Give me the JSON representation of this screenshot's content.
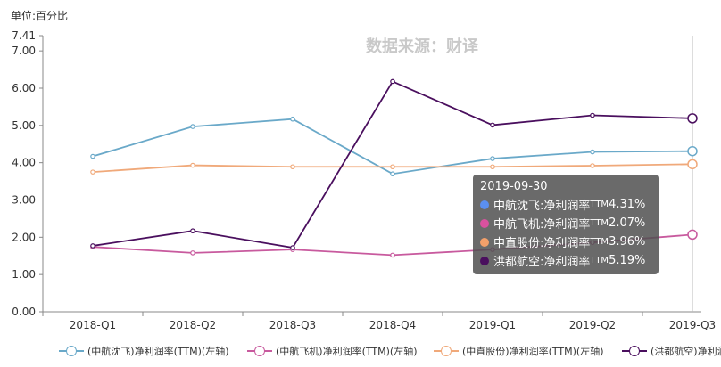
{
  "unit_label": "单位:百分比",
  "watermark": "数据来源：财译",
  "chart_data": {
    "type": "line",
    "categories": [
      "2018-Q1",
      "2018-Q2",
      "2018-Q3",
      "2018-Q4",
      "2019-Q1",
      "2019-Q2",
      "2019-Q3"
    ],
    "y_ticks": [
      "0.00",
      "1.00",
      "2.00",
      "3.00",
      "4.00",
      "5.00",
      "6.00",
      "7.00",
      "7.41"
    ],
    "ylim": [
      0,
      7.41
    ],
    "grid": false,
    "legend_position": "bottom",
    "series": [
      {
        "name": "(中航沈飞)净利润率(TTM)(左轴)",
        "color": "#6aa9c9",
        "values": [
          4.17,
          4.97,
          5.17,
          3.7,
          4.11,
          4.29,
          4.31
        ]
      },
      {
        "name": "(中航飞机)净利润率(TTM)(左轴)",
        "color": "#c85a9e",
        "values": [
          1.74,
          1.58,
          1.67,
          1.52,
          1.67,
          1.86,
          2.07
        ]
      },
      {
        "name": "(中直股份)净利润率(TTM)(左轴)",
        "color": "#f0a97a",
        "values": [
          3.75,
          3.93,
          3.89,
          3.89,
          3.89,
          3.92,
          3.96
        ]
      },
      {
        "name": "(洪都航空)净利润率(TTM)(左轴)",
        "color": "#4a0f5e",
        "values": [
          1.77,
          2.17,
          1.72,
          6.18,
          5.01,
          5.27,
          5.19
        ]
      }
    ]
  },
  "tooltip": {
    "date": "2019-09-30",
    "rows": [
      {
        "label": "中航沈飞:净利润率",
        "sup": "TTM",
        "value": "4.31%",
        "color": "#5b8ff0"
      },
      {
        "label": "中航飞机:净利润率",
        "sup": "TTM",
        "value": "2.07%",
        "color": "#d9519f"
      },
      {
        "label": "中直股份:净利润率",
        "sup": "TTM",
        "value": "3.96%",
        "color": "#f4a06a"
      },
      {
        "label": "洪都航空:净利润率",
        "sup": "TTM",
        "value": "5.19%",
        "color": "#4a0f5e"
      }
    ]
  },
  "legend_items": [
    {
      "label": "(中航沈飞)净利润率(TTM)(左轴)",
      "color": "#6aa9c9"
    },
    {
      "label": "(中航飞机)净利润率(TTM)(左轴)",
      "color": "#c85a9e"
    },
    {
      "label": "(中直股份)净利润率(TTM)(左轴)",
      "color": "#f0a97a"
    },
    {
      "label": "(洪都航空)净利润率",
      "color": "#4a0f5e"
    }
  ]
}
